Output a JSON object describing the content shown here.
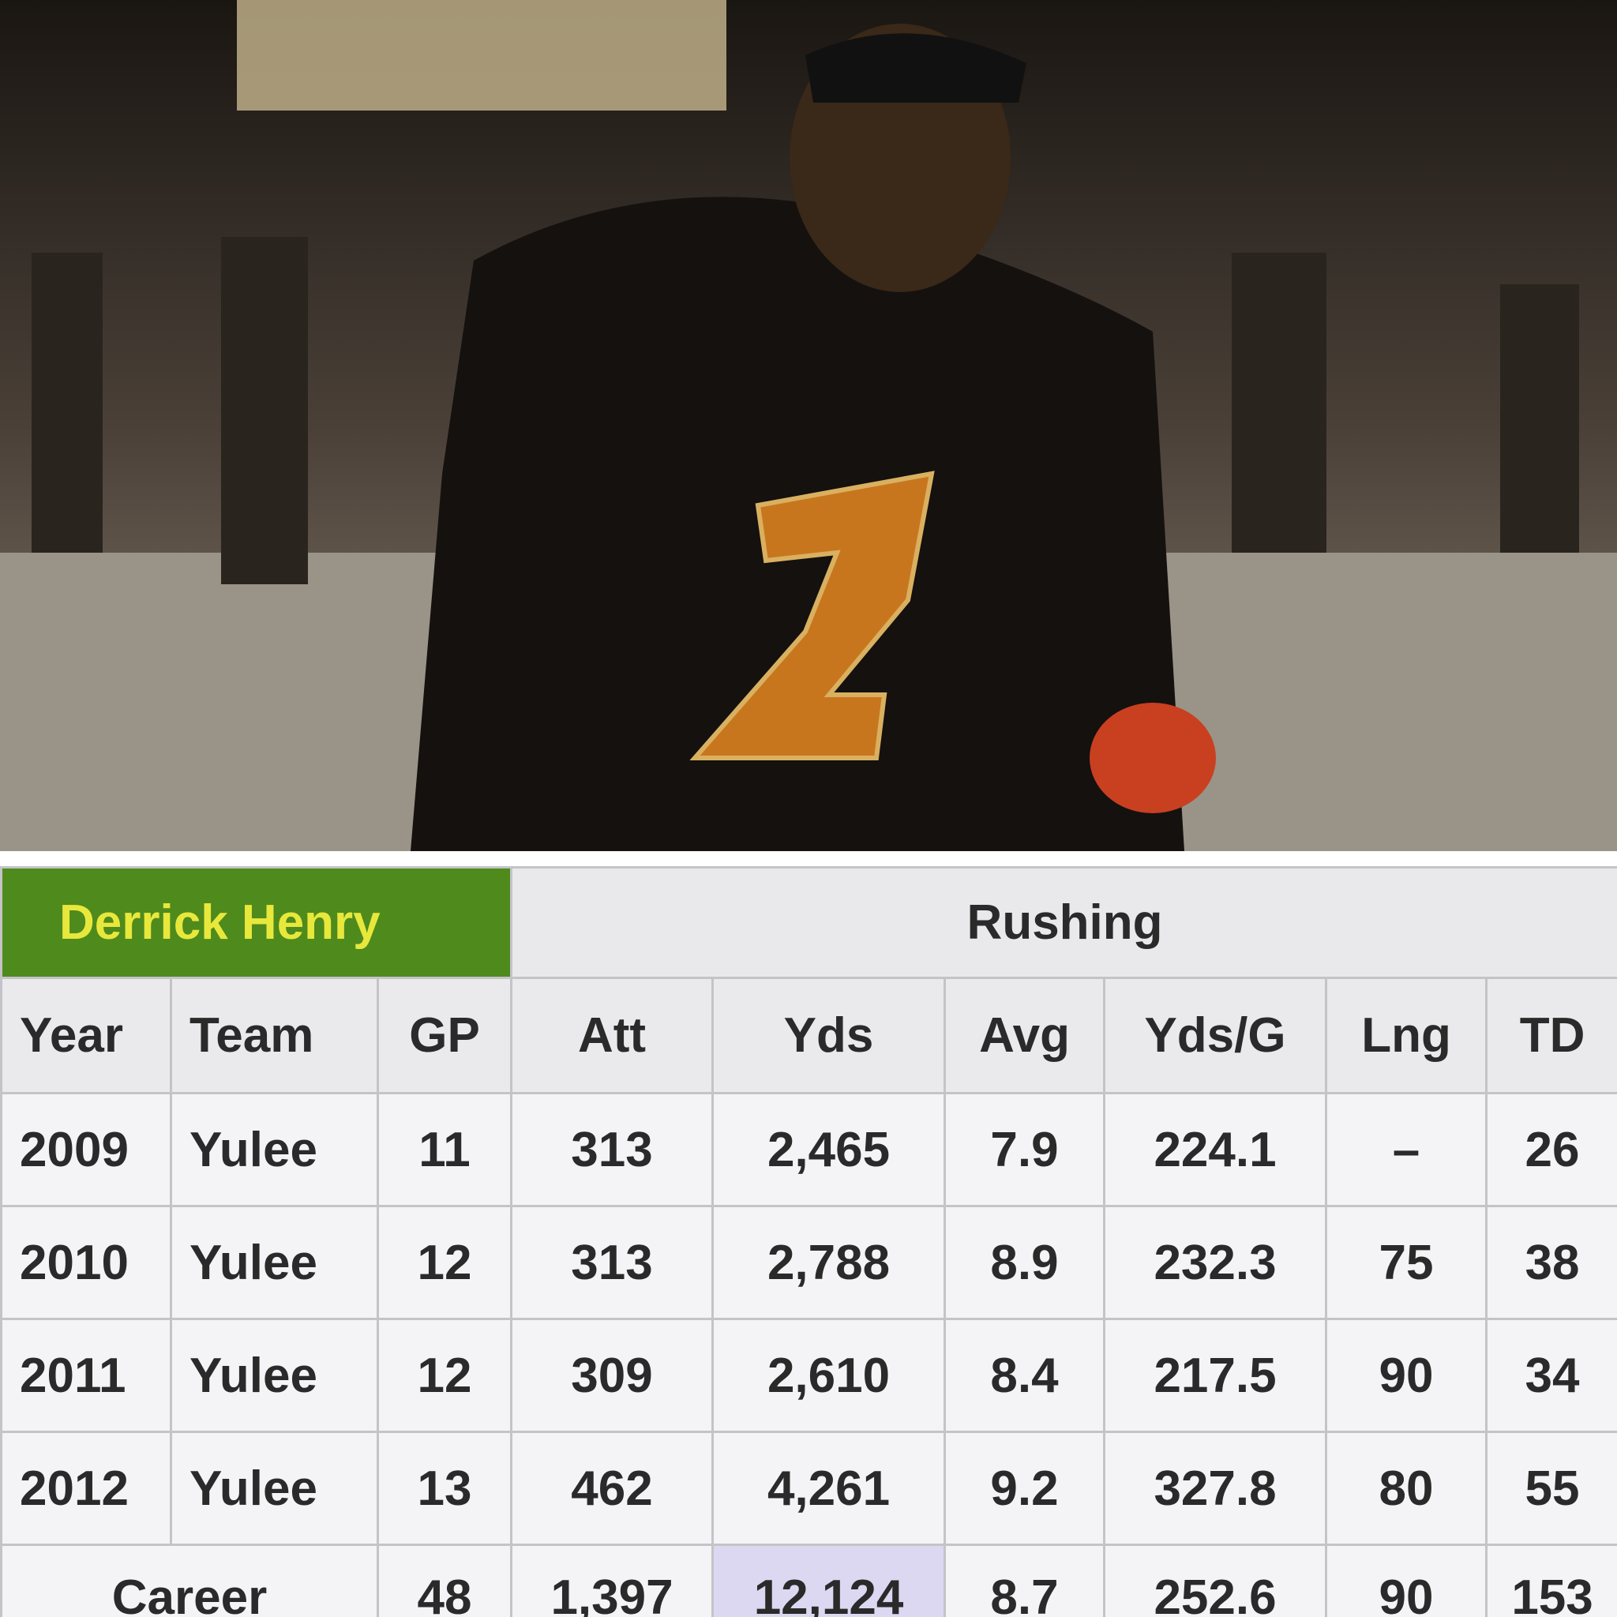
{
  "header": {
    "name": "Derrick Henry",
    "group": "Rushing"
  },
  "table": {
    "columns": [
      "Year",
      "Team",
      "GP",
      "Att",
      "Yds",
      "Avg",
      "Yds/G",
      "Lng",
      "TD"
    ],
    "rows": [
      [
        "2009",
        "Yulee",
        "11",
        "313",
        "2,465",
        "7.9",
        "224.1",
        "–",
        "26"
      ],
      [
        "2010",
        "Yulee",
        "12",
        "313",
        "2,788",
        "8.9",
        "232.3",
        "75",
        "38"
      ],
      [
        "2011",
        "Yulee",
        "12",
        "309",
        "2,610",
        "8.4",
        "217.5",
        "90",
        "34"
      ],
      [
        "2012",
        "Yulee",
        "13",
        "462",
        "4,261",
        "9.2",
        "327.8",
        "80",
        "55"
      ]
    ],
    "career": [
      "Career",
      "48",
      "1,397",
      "12,124",
      "8.7",
      "252.6",
      "90",
      "153"
    ]
  }
}
